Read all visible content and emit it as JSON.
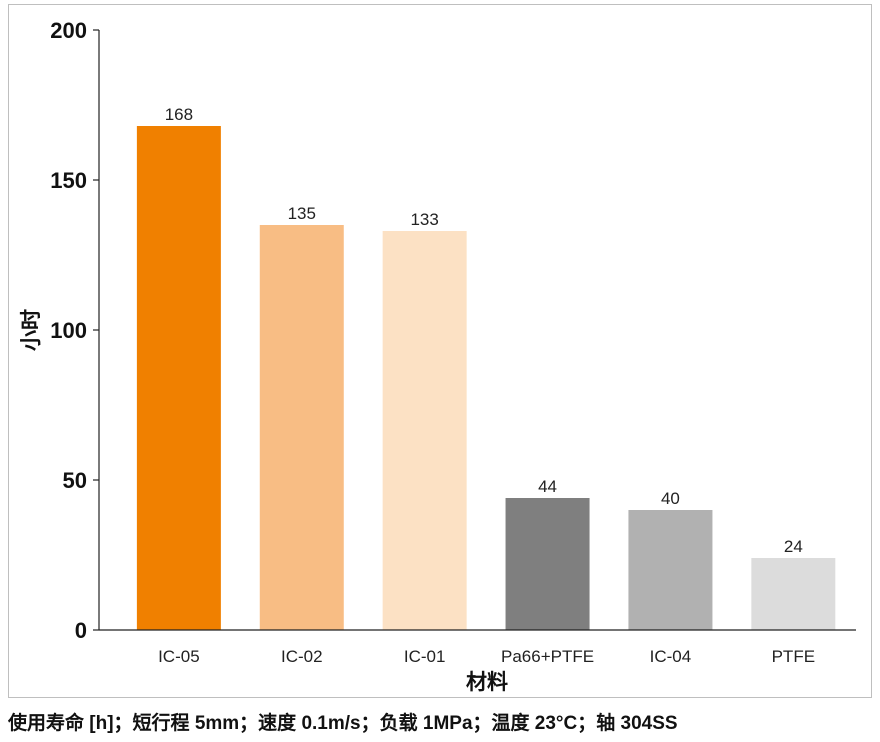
{
  "chart_data": {
    "type": "bar",
    "categories": [
      "IC-05",
      "IC-02",
      "IC-01",
      "Pa66+PTFE",
      "IC-04",
      "PTFE"
    ],
    "values": [
      168,
      135,
      133,
      44,
      40,
      24
    ],
    "xlabel": "材料",
    "ylabel": "小时",
    "ylim": [
      0,
      200
    ],
    "yticks": [
      0,
      50,
      100,
      150,
      200
    ],
    "grid": false,
    "bar_colors": [
      "#f08000",
      "#f8bd84",
      "#fce1c4",
      "#7f7f7f",
      "#b1b1b1",
      "#dcdcdc"
    ]
  },
  "caption": "使用寿命 [h]；短行程 5mm；速度 0.1m/s；负载 1MPa；温度 23°C；轴 304SS"
}
